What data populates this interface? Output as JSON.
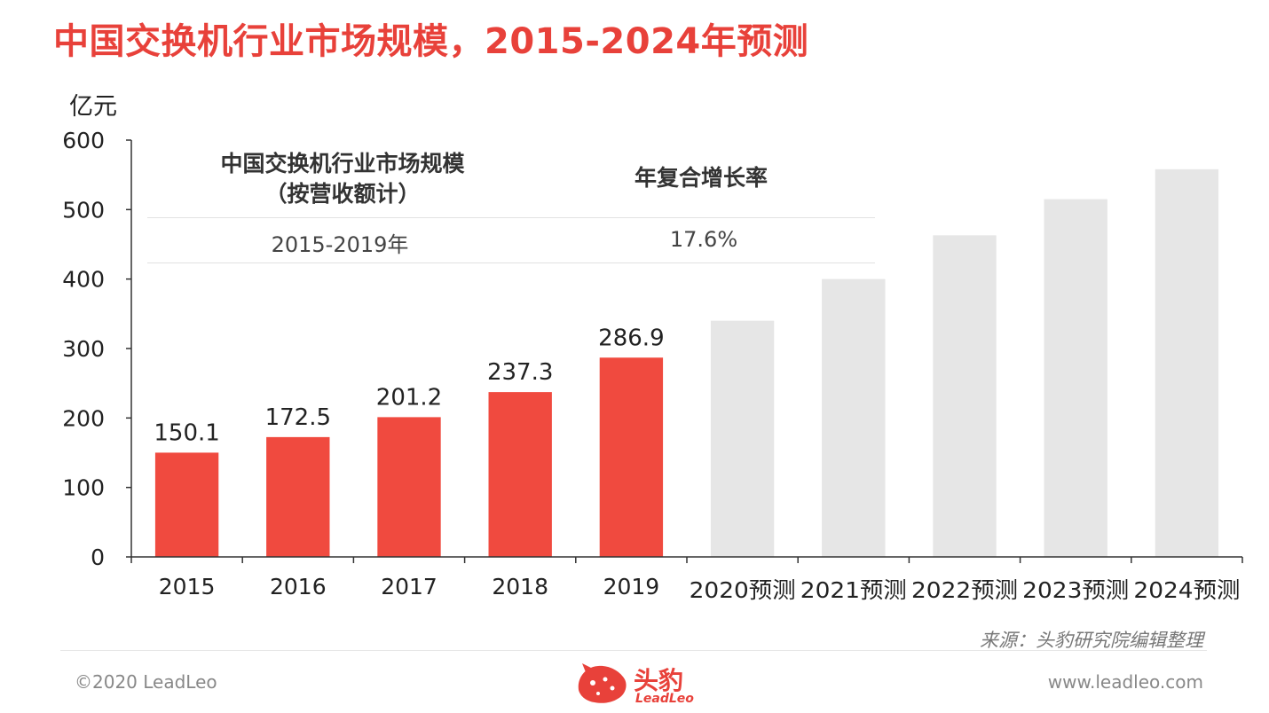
{
  "title": "中国交换机行业市场规模，2015-2024年预测",
  "unit_label": "亿元",
  "cagr_table": {
    "col1_header": "中国交换机行业市场规模\n（按营收额计）",
    "col2_header": "年复合增长率",
    "period": "2015-2019年",
    "rate": "17.6%"
  },
  "chart_data": {
    "type": "bar",
    "categories": [
      "2015",
      "2016",
      "2017",
      "2018",
      "2019",
      "2020预测",
      "2021预测",
      "2022预测",
      "2023预测",
      "2024预测"
    ],
    "values": [
      150.1,
      172.5,
      201.2,
      237.3,
      286.9,
      340,
      400,
      463,
      515,
      558
    ],
    "data_labels": [
      "150.1",
      "172.5",
      "201.2",
      "237.3",
      "286.9",
      null,
      null,
      null,
      null,
      null
    ],
    "forecast_from_index": 5,
    "ylabel": "亿元",
    "ylim": [
      0,
      600
    ],
    "yticks": [
      0,
      100,
      200,
      300,
      400,
      500,
      600
    ],
    "grid": false,
    "colors": {
      "actual": "#f04a3f",
      "forecast": "#e6e6e6",
      "axis": "#333333"
    }
  },
  "source": "来源：头豹研究院编辑整理",
  "footer": {
    "copyright": "©2020 LeadLeo",
    "website": "www.leadleo.com",
    "logo_text": "头豹",
    "logo_sub": "LeadLeo"
  }
}
